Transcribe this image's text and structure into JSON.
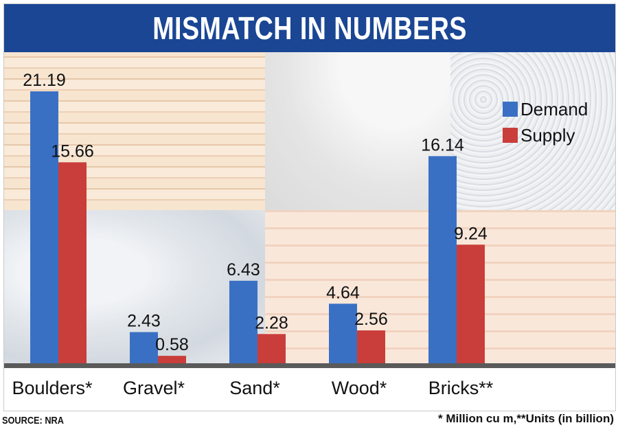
{
  "title": "MISMATCH IN NUMBERS",
  "source": "SOURCE: NRA",
  "footnote": "* Million cu m,**Units (in billion)",
  "colors": {
    "header": "#1a4694",
    "demand": "#3a70c4",
    "supply": "#c93e3a",
    "axis": "#5a5a5a"
  },
  "background_images": [
    "wood-stack-image",
    "sand-pile-image",
    "gravel-image",
    "boulders-image",
    "bricks-image"
  ],
  "chart_data": {
    "type": "bar",
    "categories": [
      "Boulders*",
      "Gravel*",
      "Sand*",
      "Wood*",
      "Bricks**"
    ],
    "series": [
      {
        "name": "Demand",
        "values": [
          21.19,
          2.43,
          6.43,
          4.64,
          16.14
        ],
        "labels": [
          "21.19",
          "2.43",
          "6.43",
          "4.64",
          "16.14"
        ]
      },
      {
        "name": "Supply",
        "values": [
          15.66,
          0.58,
          2.28,
          2.56,
          9.24
        ],
        "labels": [
          "15.66",
          "0.58",
          "2.28",
          "2.56",
          "9.24"
        ]
      }
    ],
    "legend_position": "top-right",
    "grid": false
  }
}
